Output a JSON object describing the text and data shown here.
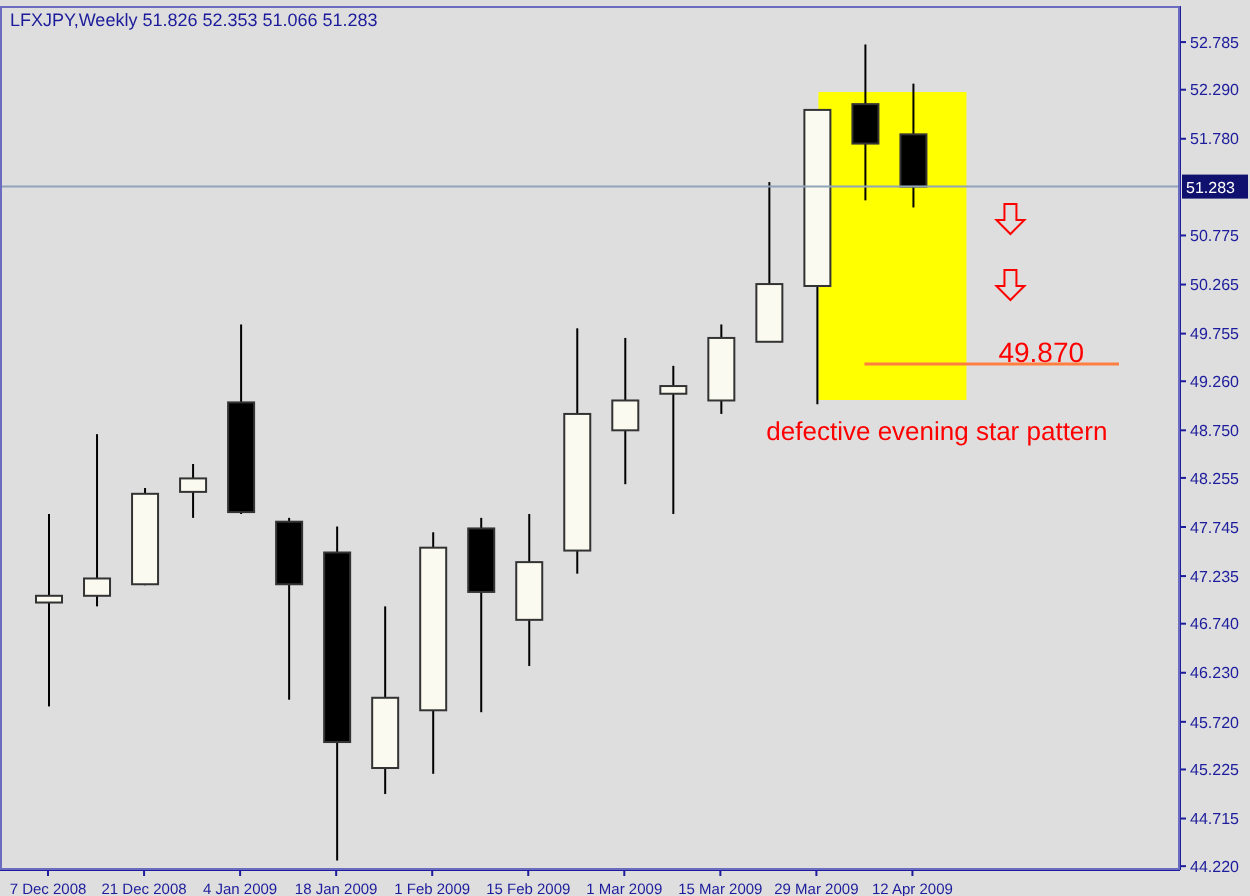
{
  "chart_data": {
    "type": "candlestick",
    "title": "LFXJPY,Weekly  51.826 52.353 51.066 51.283",
    "x": [
      "2008-12-07",
      "2008-12-14",
      "2008-12-21",
      "2008-12-28",
      "2009-01-04",
      "2009-01-11",
      "2009-01-18",
      "2009-01-25",
      "2009-02-01",
      "2009-02-08",
      "2009-02-15",
      "2009-02-22",
      "2009-03-01",
      "2009-03-08",
      "2009-03-15",
      "2009-03-22",
      "2009-03-29",
      "2009-04-05",
      "2009-04-12"
    ],
    "xlim": [
      "2008-11-30",
      "2009-05-21"
    ],
    "xticks": [
      {
        "value": "2008-12-07",
        "label": "7 Dec 2008"
      },
      {
        "value": "2008-12-21",
        "label": "21 Dec 2008"
      },
      {
        "value": "2009-01-04",
        "label": "4 Jan 2009"
      },
      {
        "value": "2009-01-18",
        "label": "18 Jan 2009"
      },
      {
        "value": "2009-02-01",
        "label": "1 Feb 2009"
      },
      {
        "value": "2009-02-15",
        "label": "15 Feb 2009"
      },
      {
        "value": "2009-03-01",
        "label": "1 Mar 2009"
      },
      {
        "value": "2009-03-15",
        "label": "15 Mar 2009"
      },
      {
        "value": "2009-03-29",
        "label": "29 Mar 2009"
      },
      {
        "value": "2009-04-12",
        "label": "12 Apr 2009"
      }
    ],
    "ohlc": [
      [
        46.96,
        47.88,
        45.88,
        47.03
      ],
      [
        47.03,
        48.71,
        46.92,
        47.21
      ],
      [
        47.15,
        48.15,
        47.14,
        48.09
      ],
      [
        48.11,
        48.4,
        47.84,
        48.25
      ],
      [
        49.04,
        49.85,
        47.88,
        47.9
      ],
      [
        47.8,
        47.84,
        45.95,
        47.15
      ],
      [
        47.48,
        47.75,
        44.28,
        45.51
      ],
      [
        45.24,
        46.92,
        44.97,
        45.97
      ],
      [
        45.84,
        47.69,
        45.18,
        47.53
      ],
      [
        47.73,
        47.84,
        45.82,
        47.07
      ],
      [
        46.78,
        47.88,
        46.3,
        47.38
      ],
      [
        47.5,
        49.81,
        47.26,
        48.92
      ],
      [
        48.75,
        49.71,
        48.19,
        49.06
      ],
      [
        49.13,
        49.42,
        47.88,
        49.21
      ],
      [
        49.06,
        49.85,
        48.92,
        49.71
      ],
      [
        49.67,
        51.33,
        49.67,
        50.27
      ],
      [
        50.25,
        52.08,
        49.02,
        52.08
      ],
      [
        52.14,
        52.76,
        51.14,
        51.73
      ],
      [
        51.826,
        52.353,
        51.066,
        51.283
      ]
    ],
    "colors": [
      "#fafaf0",
      "#fafaf0",
      "#fafaf0",
      "#fafaf0",
      "#000000",
      "#000000",
      "#000000",
      "#fafaf0",
      "#fafaf0",
      "#000000",
      "#fafaf0",
      "#fafaf0",
      "#fafaf0",
      "#fafaf0",
      "#fafaf0",
      "#fafaf0",
      "#fafaf0",
      "#000000",
      "#000000"
    ],
    "ylim": [
      44.18,
      53.16
    ],
    "yticks": [
      {
        "value": 52.785,
        "label": "52.785"
      },
      {
        "value": 52.29,
        "label": "52.290"
      },
      {
        "value": 51.78,
        "label": "51.780"
      },
      {
        "value": 50.775,
        "label": "50.775"
      },
      {
        "value": 50.265,
        "label": "50.265"
      },
      {
        "value": 49.755,
        "label": "49.755"
      },
      {
        "value": 49.26,
        "label": "49.260"
      },
      {
        "value": 48.75,
        "label": "48.750"
      },
      {
        "value": 48.255,
        "label": "48.255"
      },
      {
        "value": 47.745,
        "label": "47.745"
      },
      {
        "value": 47.235,
        "label": "47.235"
      },
      {
        "value": 46.74,
        "label": "46.740"
      },
      {
        "value": 46.23,
        "label": "46.230"
      },
      {
        "value": 45.72,
        "label": "45.720"
      },
      {
        "value": 45.225,
        "label": "45.225"
      },
      {
        "value": 44.715,
        "label": "44.715"
      },
      {
        "value": 44.22,
        "label": "44.220"
      }
    ],
    "ref_lines": [
      {
        "axis": "y",
        "value": 51.283,
        "label": "51.283",
        "color": "#8fa4b8"
      },
      {
        "axis": "y",
        "value": 49.44,
        "color": "#ff7f40"
      }
    ],
    "annotations": [
      "defective evening star pattern",
      "49.870"
    ],
    "grid": false,
    "legend": false
  }
}
